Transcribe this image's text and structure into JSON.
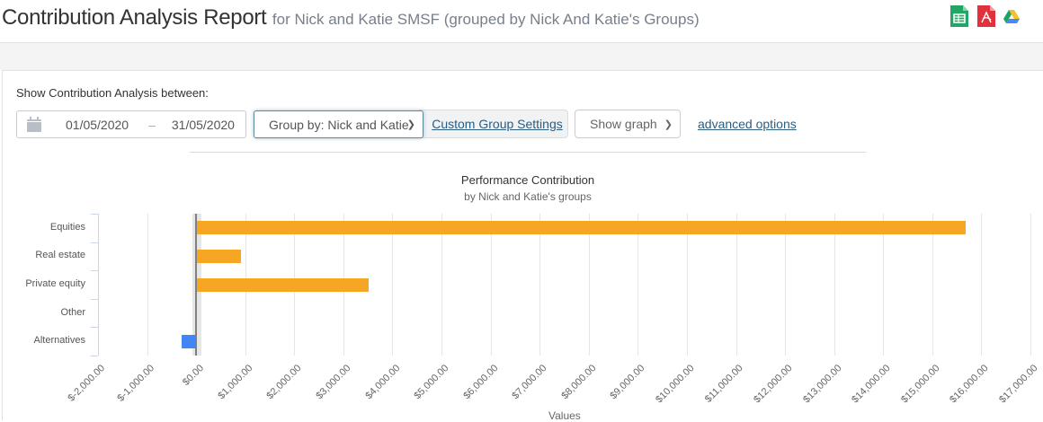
{
  "header": {
    "title": "Contribution Analysis Report",
    "subtitle": "for Nick and Katie SMSF (grouped by Nick And Katie's Groups)",
    "export_icons": [
      "google-sheets-icon",
      "pdf-icon",
      "google-drive-icon"
    ]
  },
  "controls": {
    "label": "Show Contribution Analysis between:",
    "date_from": "01/05/2020",
    "date_separator": "–",
    "date_to": "31/05/2020",
    "group_by": "Group by: Nick and Katie",
    "custom_group_settings": "Custom Group Settings",
    "graph_select": "Show graph",
    "advanced_options": "advanced options"
  },
  "colors": {
    "positive_bar": "#f5a623",
    "negative_bar": "#4285f4",
    "link": "#2b5d80"
  },
  "chart_data": {
    "type": "bar",
    "orientation": "horizontal",
    "title": "Performance Contribution",
    "subtitle": "by Nick and Katie's groups",
    "xlabel": "Values",
    "ylabel": "",
    "categories": [
      "Equities",
      "Real estate",
      "Private equity",
      "Other",
      "Alternatives"
    ],
    "values": [
      15670,
      900,
      3490,
      0,
      -290
    ],
    "xlim": [
      -2000,
      17000
    ],
    "x_ticks": [
      "$-2,000.00",
      "$-1,000.00",
      "$0.00",
      "$1,000.00",
      "$2,000.00",
      "$3,000.00",
      "$4,000.00",
      "$5,000.00",
      "$6,000.00",
      "$7,000.00",
      "$8,000.00",
      "$9,000.00",
      "$10,000.00",
      "$11,000.00",
      "$12,000.00",
      "$13,000.00",
      "$14,000.00",
      "$15,000.00",
      "$16,000.00",
      "$17,000.00"
    ],
    "grid": true,
    "legend": "none"
  }
}
